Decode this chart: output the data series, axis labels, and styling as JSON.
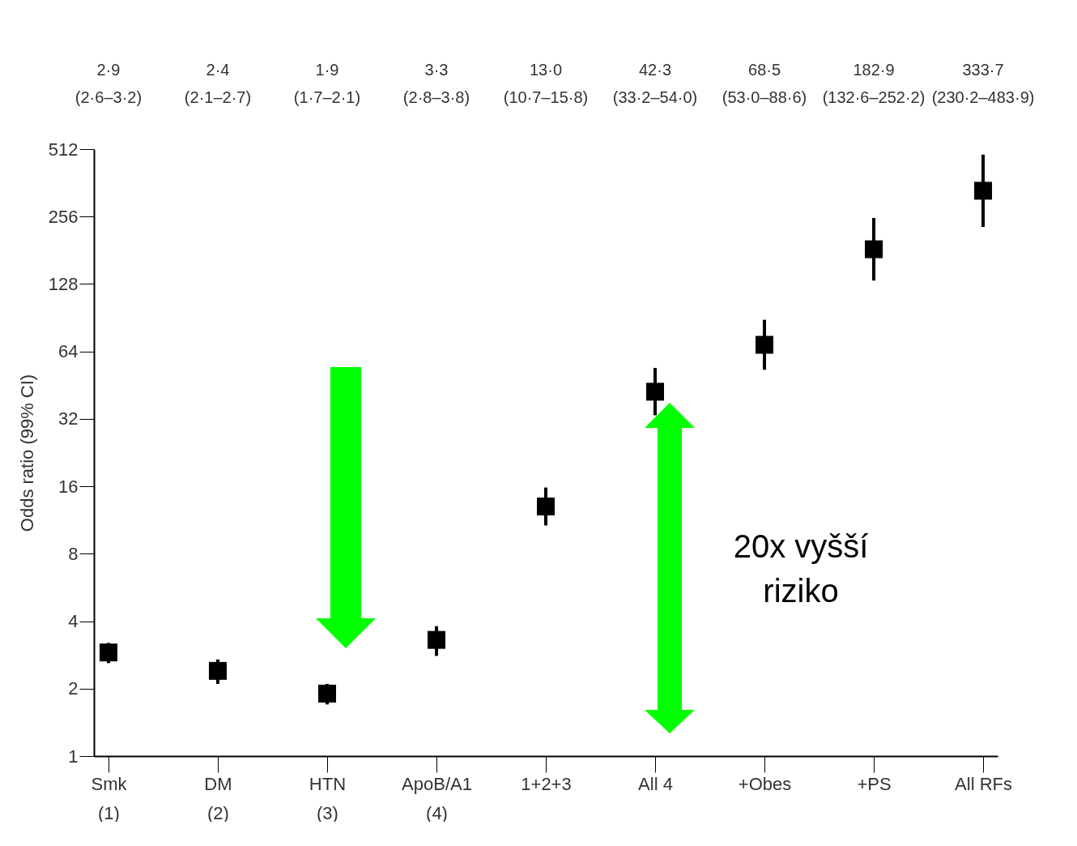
{
  "chart_data": {
    "type": "scatter",
    "ylabel": "Odds ratio (99% CI)",
    "categories": [
      "Smk\n(1)",
      "DM\n(2)",
      "HTN\n(3)",
      "ApoB/A1\n(4)",
      "1+2+3",
      "All 4",
      "+Obes",
      "+PS",
      "All RFs"
    ],
    "values": [
      2.9,
      2.4,
      1.9,
      3.3,
      13.0,
      42.3,
      68.5,
      182.9,
      333.7
    ],
    "errors": [
      [
        2.6,
        3.2
      ],
      [
        2.1,
        2.7
      ],
      [
        1.7,
        2.1
      ],
      [
        2.8,
        3.8
      ],
      [
        10.7,
        15.8
      ],
      [
        33.2,
        54.0
      ],
      [
        53.0,
        88.6
      ],
      [
        132.6,
        252.2
      ],
      [
        230.2,
        483.9
      ]
    ],
    "value_labels": [
      "2·9\n(2·6–3·2)",
      "2·4\n(2·1–2·7)",
      "1·9\n(1·7–2·1)",
      "3·3\n(2·8–3·8)",
      "13·0\n(10·7–15·8)",
      "42·3\n(33·2–54·0)",
      "68·5\n(53·0–88·6)",
      "182·9\n(132·6–252·2)",
      "333·7\n(230·2–483·9)"
    ],
    "color": "#000000",
    "marker": "square",
    "log": true,
    "ylim": [
      1,
      512
    ],
    "yticks": [
      1,
      2,
      4,
      8,
      16,
      32,
      64,
      128,
      256,
      512
    ],
    "grid": false,
    "annotations": [
      "20x vyšší riziko"
    ]
  }
}
